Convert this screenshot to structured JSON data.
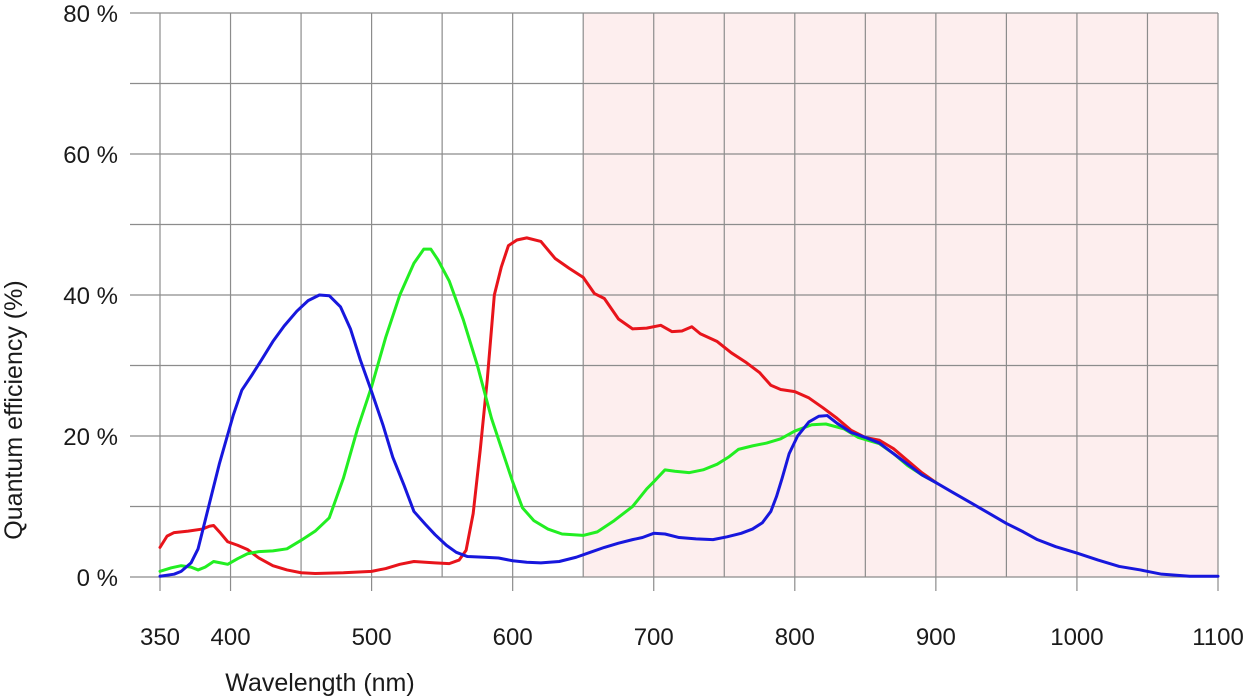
{
  "chart_data": {
    "type": "line",
    "title": "",
    "xlabel": "Wavelength (nm)",
    "ylabel": "Quantum efficiency (%)",
    "xlim": [
      350,
      1100
    ],
    "ylim": [
      0,
      80
    ],
    "grid": true,
    "x_grid": [
      350,
      400,
      450,
      500,
      550,
      600,
      650,
      700,
      750,
      800,
      850,
      900,
      950,
      1000,
      1050,
      1100
    ],
    "y_grid": [
      0,
      10,
      20,
      30,
      40,
      50,
      60,
      70,
      80
    ],
    "x_ticks": [
      {
        "value": 350,
        "label": "350"
      },
      {
        "value": 400,
        "label": "400"
      },
      {
        "value": 500,
        "label": "500"
      },
      {
        "value": 600,
        "label": "600"
      },
      {
        "value": 700,
        "label": "700"
      },
      {
        "value": 800,
        "label": "800"
      },
      {
        "value": 900,
        "label": "900"
      },
      {
        "value": 1000,
        "label": "1000"
      },
      {
        "value": 1100,
        "label": "1100"
      }
    ],
    "y_ticks": [
      {
        "value": 0,
        "label": "0 %"
      },
      {
        "value": 20,
        "label": "20 %"
      },
      {
        "value": 40,
        "label": "40 %"
      },
      {
        "value": 60,
        "label": "60 %"
      },
      {
        "value": 80,
        "label": "80 %"
      }
    ],
    "shaded_region": {
      "x_start": 650,
      "x_end": 1100,
      "color": "#fdeeee"
    },
    "series": [
      {
        "color": "#e8141b",
        "points": [
          [
            350,
            4.2
          ],
          [
            355,
            5.8
          ],
          [
            360,
            6.3
          ],
          [
            370,
            6.5
          ],
          [
            380,
            6.8
          ],
          [
            385,
            7.2
          ],
          [
            388,
            7.3
          ],
          [
            393,
            6.2
          ],
          [
            398,
            5.0
          ],
          [
            405,
            4.5
          ],
          [
            412,
            3.9
          ],
          [
            420,
            2.7
          ],
          [
            430,
            1.6
          ],
          [
            440,
            1.0
          ],
          [
            450,
            0.6
          ],
          [
            460,
            0.5
          ],
          [
            480,
            0.6
          ],
          [
            500,
            0.8
          ],
          [
            510,
            1.2
          ],
          [
            520,
            1.8
          ],
          [
            530,
            2.2
          ],
          [
            545,
            2.0
          ],
          [
            555,
            1.9
          ],
          [
            562,
            2.4
          ],
          [
            567,
            3.8
          ],
          [
            572,
            9
          ],
          [
            577,
            18
          ],
          [
            582,
            28
          ],
          [
            587,
            40
          ],
          [
            592,
            44
          ],
          [
            597,
            47
          ],
          [
            603,
            47.8
          ],
          [
            610,
            48.1
          ],
          [
            620,
            47.6
          ],
          [
            630,
            45.2
          ],
          [
            640,
            43.8
          ],
          [
            650,
            42.5
          ],
          [
            658,
            40.2
          ],
          [
            665,
            39.5
          ],
          [
            675,
            36.6
          ],
          [
            685,
            35.2
          ],
          [
            695,
            35.3
          ],
          [
            705,
            35.7
          ],
          [
            713,
            34.8
          ],
          [
            720,
            34.9
          ],
          [
            727,
            35.5
          ],
          [
            733,
            34.5
          ],
          [
            745,
            33.4
          ],
          [
            755,
            31.8
          ],
          [
            765,
            30.5
          ],
          [
            775,
            29.0
          ],
          [
            783,
            27.2
          ],
          [
            790,
            26.6
          ],
          [
            800,
            26.3
          ],
          [
            810,
            25.4
          ],
          [
            820,
            24.0
          ],
          [
            830,
            22.5
          ],
          [
            840,
            20.8
          ],
          [
            850,
            19.8
          ],
          [
            860,
            19.4
          ],
          [
            870,
            18.2
          ],
          [
            880,
            16.5
          ],
          [
            890,
            14.8
          ],
          [
            900,
            13.4
          ]
        ]
      },
      {
        "color": "#22ee22",
        "points": [
          [
            350,
            0.8
          ],
          [
            358,
            1.3
          ],
          [
            365,
            1.6
          ],
          [
            372,
            1.4
          ],
          [
            377,
            1.0
          ],
          [
            382,
            1.4
          ],
          [
            388,
            2.2
          ],
          [
            393,
            2.0
          ],
          [
            398,
            1.8
          ],
          [
            405,
            2.6
          ],
          [
            412,
            3.3
          ],
          [
            420,
            3.6
          ],
          [
            430,
            3.7
          ],
          [
            440,
            4.0
          ],
          [
            450,
            5.2
          ],
          [
            460,
            6.5
          ],
          [
            470,
            8.4
          ],
          [
            480,
            14
          ],
          [
            490,
            21
          ],
          [
            500,
            27
          ],
          [
            510,
            34
          ],
          [
            520,
            40
          ],
          [
            530,
            44.5
          ],
          [
            537,
            46.5
          ],
          [
            542,
            46.5
          ],
          [
            547,
            45.0
          ],
          [
            555,
            42.0
          ],
          [
            565,
            36.5
          ],
          [
            575,
            30.0
          ],
          [
            585,
            22.5
          ],
          [
            595,
            16.5
          ],
          [
            600,
            13.5
          ],
          [
            607,
            9.8
          ],
          [
            615,
            8.0
          ],
          [
            625,
            6.8
          ],
          [
            635,
            6.1
          ],
          [
            650,
            5.9
          ],
          [
            660,
            6.4
          ],
          [
            672,
            8.0
          ],
          [
            685,
            10.0
          ],
          [
            695,
            12.5
          ],
          [
            700,
            13.5
          ],
          [
            708,
            15.2
          ],
          [
            715,
            15.0
          ],
          [
            725,
            14.8
          ],
          [
            735,
            15.2
          ],
          [
            745,
            16.0
          ],
          [
            753,
            17.0
          ],
          [
            760,
            18.1
          ],
          [
            770,
            18.6
          ],
          [
            780,
            19.0
          ],
          [
            790,
            19.6
          ],
          [
            800,
            20.7
          ],
          [
            812,
            21.6
          ],
          [
            822,
            21.7
          ],
          [
            835,
            21.0
          ],
          [
            845,
            19.8
          ],
          [
            860,
            18.9
          ],
          [
            870,
            17.5
          ],
          [
            880,
            15.8
          ],
          [
            890,
            14.5
          ],
          [
            900,
            13.4
          ]
        ]
      },
      {
        "color": "#1717dd",
        "points": [
          [
            350,
            0.1
          ],
          [
            360,
            0.4
          ],
          [
            365,
            0.8
          ],
          [
            372,
            2.0
          ],
          [
            377,
            4.0
          ],
          [
            382,
            8.0
          ],
          [
            387,
            12.0
          ],
          [
            392,
            16.0
          ],
          [
            397,
            19.5
          ],
          [
            402,
            23
          ],
          [
            408,
            26.5
          ],
          [
            415,
            28.6
          ],
          [
            422,
            30.8
          ],
          [
            430,
            33.4
          ],
          [
            438,
            35.6
          ],
          [
            447,
            37.7
          ],
          [
            455,
            39.2
          ],
          [
            463,
            40.0
          ],
          [
            470,
            39.9
          ],
          [
            478,
            38.3
          ],
          [
            485,
            35.2
          ],
          [
            492,
            30.8
          ],
          [
            500,
            26.3
          ],
          [
            508,
            21.6
          ],
          [
            515,
            17.0
          ],
          [
            523,
            13.0
          ],
          [
            530,
            9.3
          ],
          [
            538,
            7.5
          ],
          [
            545,
            6.0
          ],
          [
            553,
            4.5
          ],
          [
            560,
            3.5
          ],
          [
            568,
            2.9
          ],
          [
            580,
            2.8
          ],
          [
            590,
            2.7
          ],
          [
            600,
            2.3
          ],
          [
            610,
            2.1
          ],
          [
            620,
            2.0
          ],
          [
            633,
            2.2
          ],
          [
            645,
            2.8
          ],
          [
            655,
            3.5
          ],
          [
            665,
            4.2
          ],
          [
            675,
            4.8
          ],
          [
            685,
            5.3
          ],
          [
            692,
            5.6
          ],
          [
            700,
            6.2
          ],
          [
            708,
            6.1
          ],
          [
            718,
            5.6
          ],
          [
            730,
            5.4
          ],
          [
            742,
            5.3
          ],
          [
            752,
            5.7
          ],
          [
            762,
            6.2
          ],
          [
            770,
            6.8
          ],
          [
            777,
            7.7
          ],
          [
            783,
            9.3
          ],
          [
            787,
            11.4
          ],
          [
            791,
            14.0
          ],
          [
            796,
            17.5
          ],
          [
            802,
            20.0
          ],
          [
            810,
            22.0
          ],
          [
            817,
            22.8
          ],
          [
            823,
            22.9
          ],
          [
            830,
            21.8
          ],
          [
            840,
            20.5
          ],
          [
            850,
            19.8
          ],
          [
            860,
            19.0
          ],
          [
            870,
            17.5
          ],
          [
            880,
            16.0
          ],
          [
            890,
            14.5
          ],
          [
            900,
            13.4
          ],
          [
            912,
            12.0
          ],
          [
            925,
            10.5
          ],
          [
            938,
            9.0
          ],
          [
            950,
            7.6
          ],
          [
            962,
            6.4
          ],
          [
            972,
            5.3
          ],
          [
            985,
            4.3
          ],
          [
            1000,
            3.4
          ],
          [
            1015,
            2.4
          ],
          [
            1030,
            1.5
          ],
          [
            1045,
            1.0
          ],
          [
            1060,
            0.4
          ],
          [
            1080,
            0.1
          ],
          [
            1100,
            0.1
          ]
        ]
      }
    ]
  }
}
